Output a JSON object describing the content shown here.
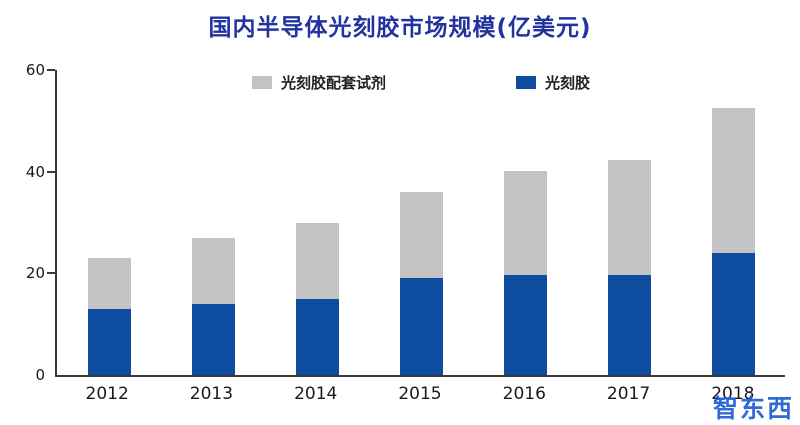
{
  "title": "国内半导体光刻胶市场规模(亿美元)",
  "watermark": "智东西",
  "colors": {
    "title": "#2233a0",
    "bar_blue": "#0d4da0",
    "bar_gray": "#c3c3c3",
    "axis": "#3a3a3a",
    "watermark": "#1b5ad2"
  },
  "chart_data": {
    "type": "bar",
    "stacked": true,
    "title": "国内半导体光刻胶市场规模(亿美元)",
    "categories": [
      "2012",
      "2013",
      "2014",
      "2015",
      "2016",
      "2017",
      "2018"
    ],
    "series": [
      {
        "name": "光刻胶",
        "color": "#0d4da0",
        "values": [
          13,
          14,
          15,
          19,
          19.7,
          19.7,
          24
        ]
      },
      {
        "name": "光刻胶配套试剂",
        "color": "#c3c3c3",
        "values": [
          10,
          13,
          15,
          17,
          20.5,
          22.5,
          28.5
        ]
      }
    ],
    "legend": [
      {
        "name": "光刻胶配套试剂",
        "color": "#c3c3c3"
      },
      {
        "name": "光刻胶",
        "color": "#0d4da0"
      }
    ],
    "legend_position": "top",
    "xlabel": "",
    "ylabel": "",
    "ylim": [
      0,
      60
    ],
    "yticks": [
      0,
      20,
      40,
      60
    ],
    "grid": false
  }
}
